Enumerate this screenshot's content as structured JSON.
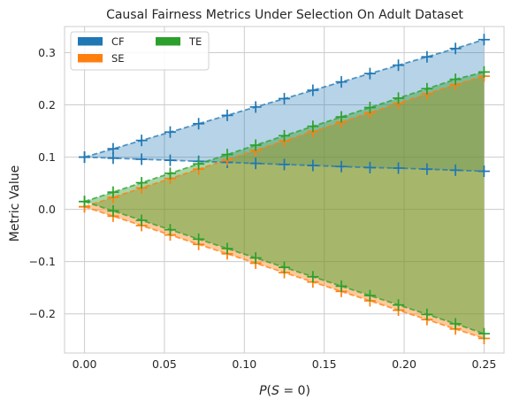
{
  "chart_data": {
    "type": "line",
    "title": "Causal Fairness Metrics Under Selection On Adult Dataset",
    "xlabel": "P(S = 0)",
    "ylabel": "Metric Value",
    "xlim": [
      -0.0125,
      0.2625
    ],
    "ylim": [
      -0.275,
      0.35
    ],
    "xticks": [
      0.0,
      0.05,
      0.1,
      0.15,
      0.2,
      0.25
    ],
    "xtick_labels": [
      "0.00",
      "0.05",
      "0.10",
      "0.15",
      "0.20",
      "0.25"
    ],
    "yticks": [
      -0.2,
      -0.1,
      0.0,
      0.1,
      0.2,
      0.3
    ],
    "ytick_labels": [
      "−0.2",
      "−0.1",
      "0.0",
      "0.1",
      "0.2",
      "0.3"
    ],
    "grid": true,
    "legend_position": "top-left",
    "x": [
      0.0,
      0.0179,
      0.0357,
      0.0536,
      0.0714,
      0.0893,
      0.1071,
      0.125,
      0.1429,
      0.1607,
      0.1786,
      0.1964,
      0.2143,
      0.2321,
      0.25
    ],
    "series": [
      {
        "name": "CF",
        "color": "#1f77b4",
        "upper": [
          0.1,
          0.116,
          0.132,
          0.148,
          0.164,
          0.18,
          0.196,
          0.212,
          0.228,
          0.244,
          0.26,
          0.276,
          0.292,
          0.308,
          0.325
        ],
        "lower": [
          0.1,
          0.098,
          0.096,
          0.094,
          0.092,
          0.09,
          0.088,
          0.086,
          0.084,
          0.082,
          0.08,
          0.079,
          0.077,
          0.075,
          0.073
        ]
      },
      {
        "name": "SE",
        "color": "#ff7f0e",
        "upper": [
          0.005,
          0.023,
          0.041,
          0.059,
          0.077,
          0.095,
          0.113,
          0.131,
          0.149,
          0.167,
          0.185,
          0.203,
          0.221,
          0.239,
          0.255
        ],
        "lower": [
          0.005,
          -0.013,
          -0.031,
          -0.049,
          -0.067,
          -0.085,
          -0.103,
          -0.121,
          -0.139,
          -0.157,
          -0.175,
          -0.193,
          -0.211,
          -0.229,
          -0.247
        ]
      },
      {
        "name": "TE",
        "color": "#2ca02c",
        "upper": [
          0.015,
          0.033,
          0.051,
          0.069,
          0.087,
          0.105,
          0.123,
          0.141,
          0.159,
          0.177,
          0.195,
          0.213,
          0.231,
          0.249,
          0.263
        ],
        "lower": [
          0.015,
          -0.003,
          -0.021,
          -0.039,
          -0.057,
          -0.075,
          -0.093,
          -0.111,
          -0.129,
          -0.147,
          -0.165,
          -0.183,
          -0.201,
          -0.219,
          -0.238
        ]
      }
    ]
  }
}
